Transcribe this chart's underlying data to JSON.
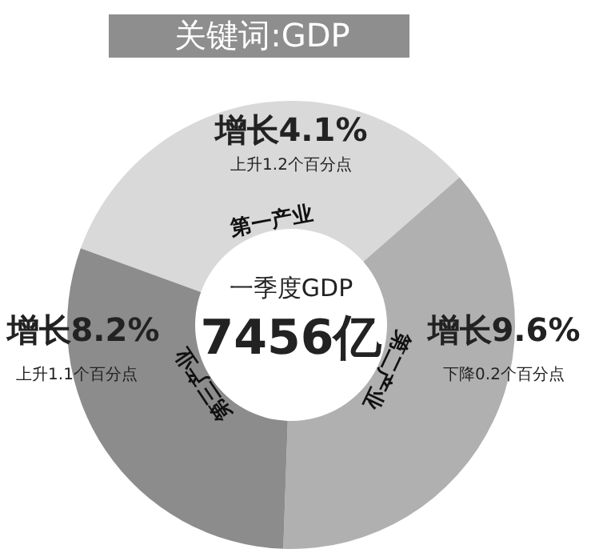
{
  "chart_data": {
    "type": "donut",
    "title": "关键词:GDP",
    "categories": [
      "第一产业",
      "第二产业",
      "第三产业"
    ],
    "values": [
      33,
      37,
      30
    ],
    "colors": [
      "#d9d9d9",
      "#b0b0b0",
      "#8c8c8c"
    ],
    "annotations": [
      "一季度GDP",
      "7456亿",
      "增长4.1%",
      "上升1.2个百分点",
      "增长9.6%",
      "下降0.2个百分点",
      "增长8.2%",
      "上升1.1个百分点"
    ]
  }
}
